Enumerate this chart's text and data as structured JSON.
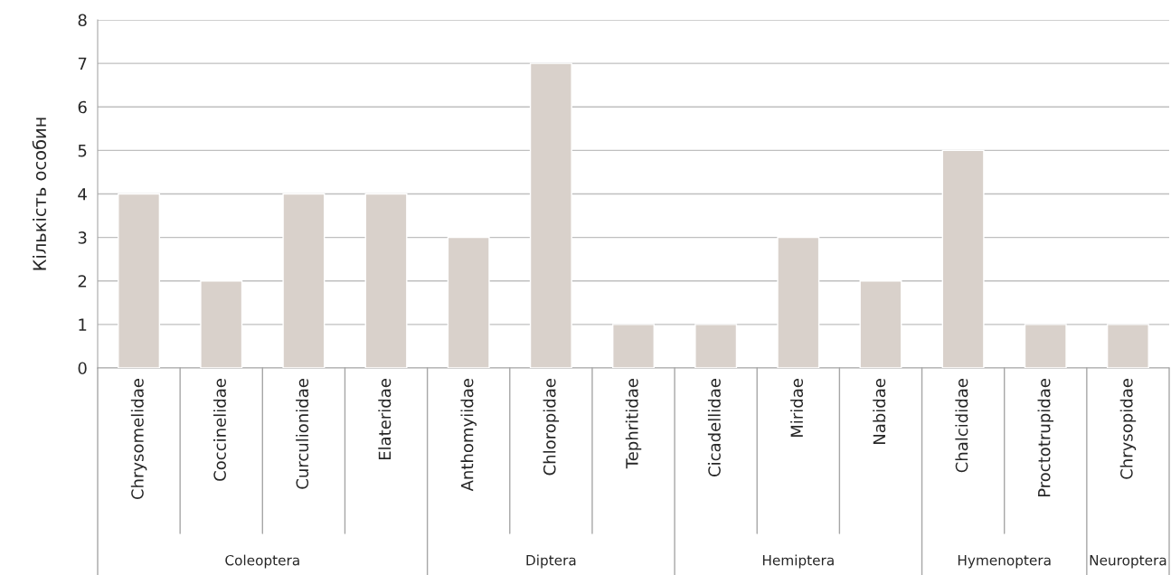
{
  "chart_data": {
    "type": "bar",
    "ylabel": "Кількість особин",
    "categories": [
      "Chrysomelidae",
      "Coccinelidae",
      "Curculionidae",
      "Elateridae",
      "Anthomyiidae",
      "Chloropidae",
      "Tephritidae",
      "Cicadellidae",
      "Miridae",
      "Nabidae",
      "Chalcididae",
      "Proctotrupidae",
      "Chrysopidae"
    ],
    "values": [
      4,
      2,
      4,
      4,
      3,
      7,
      1,
      1,
      3,
      2,
      5,
      1,
      1
    ],
    "color": "#d9d1cb",
    "ylim": [
      0,
      8
    ],
    "yticks": [
      0,
      1,
      2,
      3,
      4,
      5,
      6,
      7,
      8
    ],
    "grid": "y",
    "legend": false,
    "annotations": [
      "Coleoptera",
      "Diptera",
      "Hemiptera",
      "Hymenoptera",
      "Neuroptera"
    ]
  }
}
